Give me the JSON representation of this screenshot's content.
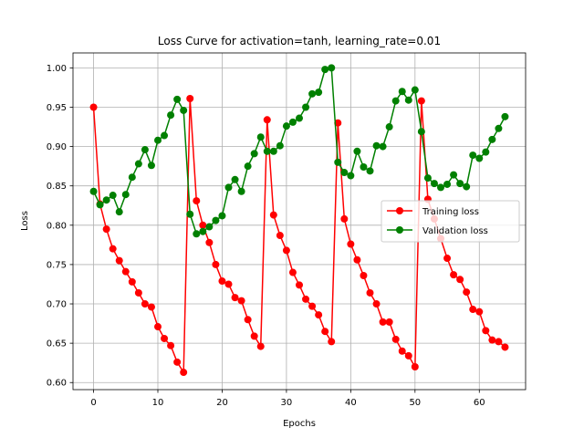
{
  "chart_data": {
    "type": "line",
    "title": "Loss Curve for activation=tanh, learning_rate=0.01",
    "xlabel": "Epochs",
    "ylabel": "Loss",
    "xlim": [
      -3.2,
      67.2
    ],
    "ylim": [
      0.591,
      1.019
    ],
    "xticks": [
      0,
      10,
      20,
      30,
      40,
      50,
      60
    ],
    "yticks": [
      0.6,
      0.65,
      0.7,
      0.75,
      0.8,
      0.85,
      0.9,
      0.95,
      1.0
    ],
    "ytick_labels": [
      "0.60",
      "0.65",
      "0.70",
      "0.75",
      "0.80",
      "0.85",
      "0.90",
      "0.95",
      "1.00"
    ],
    "grid": true,
    "legend_position": "center-right",
    "x": [
      0,
      1,
      2,
      3,
      4,
      5,
      6,
      7,
      8,
      9,
      10,
      11,
      12,
      13,
      14,
      15,
      16,
      17,
      18,
      19,
      20,
      21,
      22,
      23,
      24,
      25,
      26,
      27,
      28,
      29,
      30,
      31,
      32,
      33,
      34,
      35,
      36,
      37,
      38,
      39,
      40,
      41,
      42,
      43,
      44,
      45,
      46,
      47,
      48,
      49,
      50,
      51,
      52,
      53,
      54,
      55,
      56,
      57,
      58,
      59,
      60,
      61,
      62,
      63,
      64
    ],
    "series": [
      {
        "name": "Training loss",
        "color": "#ff0000",
        "values": [
          0.95,
          0.827,
          0.795,
          0.77,
          0.755,
          0.741,
          0.728,
          0.714,
          0.7,
          0.696,
          0.671,
          0.656,
          0.647,
          0.626,
          0.613,
          0.961,
          0.831,
          0.8,
          0.778,
          0.75,
          0.729,
          0.725,
          0.708,
          0.704,
          0.68,
          0.659,
          0.646,
          0.934,
          0.813,
          0.787,
          0.768,
          0.74,
          0.724,
          0.706,
          0.697,
          0.686,
          0.665,
          0.652,
          0.93,
          0.808,
          0.776,
          0.756,
          0.736,
          0.714,
          0.7,
          0.677,
          0.677,
          0.655,
          0.64,
          0.634,
          0.62,
          0.958,
          0.833,
          0.808,
          0.783,
          0.758,
          0.737,
          0.731,
          0.715,
          0.693,
          0.69,
          0.666,
          0.654,
          0.652,
          0.645
        ]
      },
      {
        "name": "Validation loss",
        "color": "#008000",
        "values": [
          0.843,
          0.826,
          0.832,
          0.838,
          0.817,
          0.839,
          0.861,
          0.878,
          0.896,
          0.876,
          0.908,
          0.914,
          0.94,
          0.96,
          0.946,
          0.814,
          0.789,
          0.792,
          0.798,
          0.806,
          0.812,
          0.848,
          0.858,
          0.843,
          0.875,
          0.891,
          0.912,
          0.894,
          0.894,
          0.901,
          0.926,
          0.931,
          0.936,
          0.95,
          0.967,
          0.969,
          0.998,
          1.0,
          0.88,
          0.867,
          0.863,
          0.894,
          0.874,
          0.869,
          0.901,
          0.9,
          0.925,
          0.958,
          0.97,
          0.959,
          0.972,
          0.919,
          0.86,
          0.853,
          0.848,
          0.852,
          0.864,
          0.853,
          0.849,
          0.889,
          0.885,
          0.893,
          0.909,
          0.923,
          0.938
        ]
      }
    ]
  }
}
